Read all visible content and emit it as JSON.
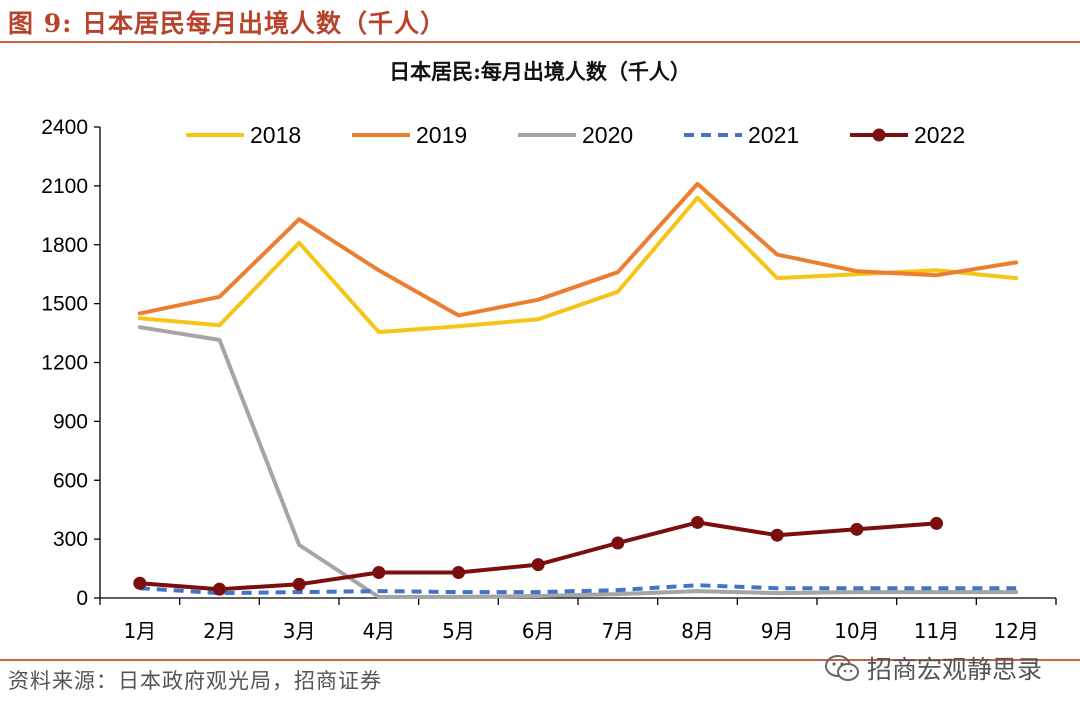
{
  "figure_label": "图 9: 日本居民每月出境人数（千人）",
  "source": "资料来源：日本政府观光局，招商证券",
  "watermark": "招商宏观静思录",
  "chart_data": {
    "type": "line",
    "title": "日本居民:每月出境人数（千人）",
    "xlabel": "",
    "ylabel": "",
    "ylim": [
      0,
      2400
    ],
    "yticks": [
      0,
      300,
      600,
      900,
      1200,
      1500,
      1800,
      2100,
      2400
    ],
    "categories": [
      "1月",
      "2月",
      "3月",
      "4月",
      "5月",
      "6月",
      "7月",
      "8月",
      "9月",
      "10月",
      "11月",
      "12月"
    ],
    "legend_position": "top",
    "series": [
      {
        "name": "2018",
        "color": "#f5c518",
        "style": "solid",
        "markers": false,
        "values": [
          1425,
          1390,
          1810,
          1355,
          1385,
          1420,
          1560,
          2040,
          1630,
          1650,
          1670,
          1630
        ]
      },
      {
        "name": "2019",
        "color": "#ed7d31",
        "style": "solid",
        "markers": false,
        "values": [
          1450,
          1535,
          1930,
          1670,
          1440,
          1520,
          1660,
          2110,
          1750,
          1665,
          1645,
          1710
        ]
      },
      {
        "name": "2020",
        "color": "#a5a5a5",
        "style": "solid",
        "markers": false,
        "values": [
          1380,
          1315,
          270,
          5,
          5,
          10,
          20,
          35,
          25,
          30,
          30,
          30
        ]
      },
      {
        "name": "2021",
        "color": "#4472c4",
        "style": "dashed",
        "markers": false,
        "values": [
          50,
          25,
          30,
          35,
          30,
          30,
          40,
          65,
          50,
          50,
          50,
          50
        ]
      },
      {
        "name": "2022",
        "color": "#7b0e0e",
        "style": "solid",
        "markers": true,
        "values": [
          75,
          45,
          70,
          130,
          130,
          170,
          280,
          385,
          320,
          350,
          380,
          null
        ]
      }
    ]
  }
}
